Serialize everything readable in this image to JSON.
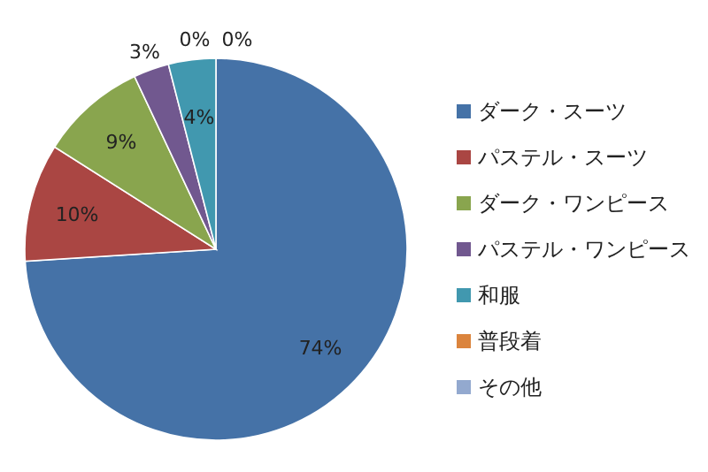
{
  "chart_data": {
    "type": "pie",
    "categories": [
      "ダーク・スーツ",
      "パステル・スーツ",
      "ダーク・ワンピース",
      "パステル・ワンピース",
      "和服",
      "普段着",
      "その他"
    ],
    "values": [
      74,
      10,
      9,
      3,
      4,
      0,
      0
    ],
    "colors": [
      "#4572a7",
      "#aa4643",
      "#89a54e",
      "#71588f",
      "#4198af",
      "#db843d",
      "#93a9cf"
    ],
    "value_labels": [
      "74%",
      "10%",
      "9%",
      "3%",
      "4%",
      "0%",
      "0%"
    ],
    "legend": "right"
  }
}
